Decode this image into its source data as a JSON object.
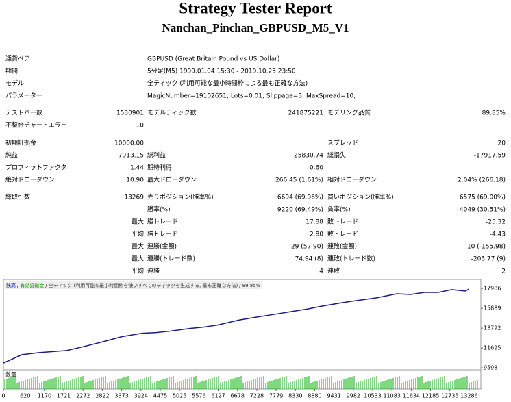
{
  "header": {
    "title": "Strategy Tester Report",
    "subtitle": "Nanchan_Pinchan_GBPUSD_M5_V1"
  },
  "info": [
    [
      "通貨ペア",
      "GBPUSD (Great Britain Pound vs US Dollar)"
    ],
    [
      "期間",
      "5分足(M5) 1999.01.04 15:30 - 2019.10.25 23:50"
    ],
    [
      "モデル",
      "全ティック (利用可能な最小時間枠による最も正確な方法)"
    ],
    [
      "パラメーター",
      "MagicNumber=19102651; Lots=0.01; Slippage=3; MaxSpread=10;"
    ]
  ],
  "stats": [
    [
      "テストバー数",
      "1530901",
      "モデルティック数",
      "241875221",
      "モデリング品質",
      "89.85%"
    ],
    [
      "不整合チャートエラー",
      "10"
    ],
    [
      "初期証拠金",
      "10000.00",
      null,
      null,
      "スプレッド",
      "20"
    ],
    [
      "純益",
      "7913.15",
      "総利益",
      "25830.74",
      "総損失",
      "-17917.59"
    ],
    [
      "プロフィットファクタ",
      "1.44",
      "期待利得",
      "0.60"
    ],
    [
      "絶対ドローダウン",
      "10.90",
      "最大ドローダウン",
      "266.45 (1.61%)",
      "相対ドローダウン",
      "2.04% (266.18)"
    ],
    [
      "総取引数",
      "13269",
      "売りポジション(勝率%)",
      "6694 (69.96%)",
      "買いポジション(勝率%)",
      "6575 (69.00%)"
    ],
    [
      null,
      null,
      "勝率(%)",
      "9220 (69.49%)",
      "負率(%)",
      "4049 (30.51%)"
    ],
    [
      null,
      "最大",
      "勝トレード",
      "17.88",
      "敗トレード",
      "-25.32"
    ],
    [
      null,
      "平均",
      "勝トレード",
      "2.80",
      "敗トレード",
      "-4.43"
    ],
    [
      null,
      "最大",
      "連勝(金額)",
      "29 (57.90)",
      "連敗(金額)",
      "10 (-155.98)"
    ],
    [
      null,
      "最大",
      "連勝(トレード数)",
      "74.94 (8)",
      "連敗(トレード数)",
      "-203.77 (9)"
    ],
    [
      null,
      "平均",
      "連勝",
      "4",
      "連敗",
      "2"
    ]
  ],
  "chart_data": {
    "type": "line",
    "legend": [
      {
        "text": "残高",
        "color": "#0000cc"
      },
      {
        "text": "有効証拠金",
        "color": "#00a000"
      },
      {
        "text": "全ティック (利用可能な最小時間枠を使いすべてのティックを生成する, 最も正確な方法)",
        "color": "#333333"
      },
      {
        "text": "89.85%",
        "color": "#333333"
      }
    ],
    "legend_separator": "/",
    "volume_label": "数量",
    "series": [
      {
        "color": "#1a1a8c",
        "x": [
          0,
          530,
          1020,
          1805,
          2150,
          2786,
          3375,
          3963,
          4356,
          4749,
          5337,
          5729,
          6121,
          6710,
          7299,
          7691,
          8181,
          8672,
          9064,
          9653,
          10045,
          10634,
          11223,
          11615,
          12008,
          12400,
          12792,
          13184,
          13269
        ],
        "values": [
          10110,
          10986,
          11205,
          11425,
          11717,
          12300,
          12886,
          13250,
          13325,
          13470,
          13763,
          13910,
          14128,
          14640,
          15006,
          15225,
          15518,
          15810,
          16100,
          16470,
          16685,
          16980,
          17420,
          17343,
          17560,
          17560,
          17855,
          17710,
          17913
        ]
      }
    ],
    "xlim": [
      0,
      13620
    ],
    "xticks": [
      0,
      620,
      1170,
      1721,
      2272,
      2822,
      3373,
      3924,
      4475,
      5025,
      5576,
      6127,
      6678,
      7228,
      7779,
      8330,
      8880,
      9431,
      9982,
      10533,
      11083,
      11634,
      12185,
      12735,
      13286
    ],
    "ylim": [
      9388,
      18936
    ],
    "yticks": [
      9598,
      11695,
      13792,
      15889,
      17986
    ]
  }
}
